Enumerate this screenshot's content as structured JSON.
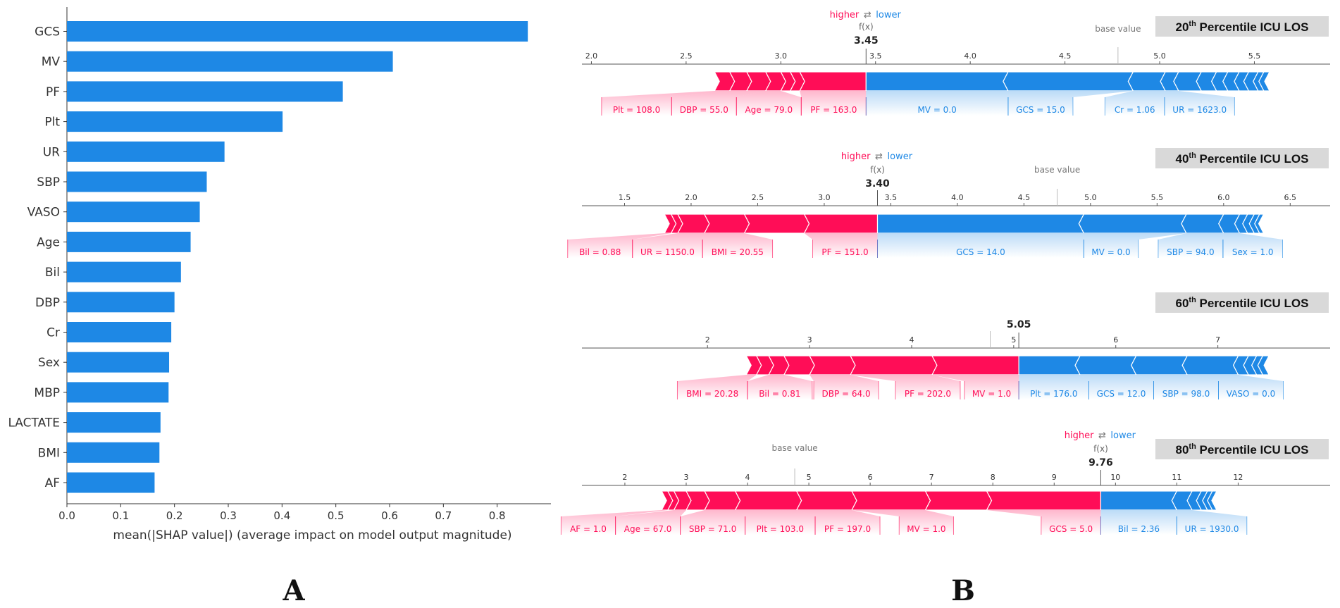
{
  "panel_labels": {
    "a": "A",
    "b": "B"
  },
  "chart_data": [
    {
      "type": "bar",
      "orientation": "horizontal",
      "title": "",
      "categories": [
        "GCS",
        "MV",
        "PF",
        "Plt",
        "UR",
        "SBP",
        "VASO",
        "Age",
        "Bil",
        "DBP",
        "Cr",
        "Sex",
        "MBP",
        "LACTATE",
        "BMI",
        "AF"
      ],
      "values": [
        0.857,
        0.606,
        0.513,
        0.401,
        0.293,
        0.26,
        0.247,
        0.23,
        0.212,
        0.2,
        0.194,
        0.19,
        0.189,
        0.174,
        0.172,
        0.163
      ],
      "xlabel": "mean(|SHAP value|) (average impact on model output magnitude)",
      "xlim": [
        0.0,
        0.9
      ],
      "xticks": [
        "0.0",
        "0.1",
        "0.2",
        "0.3",
        "0.4",
        "0.5",
        "0.6",
        "0.7",
        "0.8"
      ],
      "color": "#1e88e5"
    },
    {
      "type": "force",
      "title": "20th Percentile ICU LOS",
      "title_base": "20",
      "title_sup": "th",
      "title_rest": " Percentile ICU LOS",
      "fx": 3.45,
      "fx_label": "3.45",
      "fx_caption": "f(x)",
      "base_value": 4.78,
      "base_label": "base value",
      "legend_higher": "higher",
      "legend_arrow": "⇄",
      "legend_lower": "lower",
      "show_legend": true,
      "xlim": [
        1.95,
        5.9
      ],
      "ticks": [
        2.0,
        2.5,
        3.0,
        3.5,
        4.0,
        4.5,
        5.0,
        5.5
      ],
      "tick_labels": [
        "2.0",
        "2.5",
        "3.0",
        "3.5",
        "4.0",
        "4.5",
        "5.0",
        "5.5"
      ],
      "positive": [
        2.65,
        2.73,
        2.82,
        2.92,
        3.0,
        3.05,
        3.1,
        3.45
      ],
      "negative": [
        3.45,
        4.2,
        4.86,
        5.03,
        5.1,
        5.22,
        5.3,
        5.36,
        5.42,
        5.47,
        5.52,
        5.55,
        5.58
      ],
      "labels": [
        {
          "text": "Plt = 108.0",
          "side": "pos",
          "start": 2.65,
          "end": 2.73
        },
        {
          "text": "DBP = 55.0",
          "side": "pos",
          "start": 2.73,
          "end": 2.92
        },
        {
          "text": "Age = 79.0",
          "side": "pos",
          "start": 2.92,
          "end": 3.0
        },
        {
          "text": "PF = 163.0",
          "side": "pos",
          "start": 3.1,
          "end": 3.45
        },
        {
          "text": "MV = 0.0",
          "side": "neg",
          "start": 3.45,
          "end": 4.2
        },
        {
          "text": "GCS = 15.0",
          "side": "neg",
          "start": 4.2,
          "end": 4.86
        },
        {
          "text": "Cr = 1.06",
          "side": "neg",
          "start": 4.86,
          "end": 5.03
        },
        {
          "text": "UR = 1623.0",
          "side": "neg",
          "start": 5.03,
          "end": 5.1
        }
      ]
    },
    {
      "type": "force",
      "title": "40th Percentile ICU LOS",
      "title_base": "40",
      "title_sup": "th",
      "title_rest": " Percentile ICU LOS",
      "fx": 3.4,
      "fx_label": "3.40",
      "fx_caption": "f(x)",
      "base_value": 4.75,
      "base_label": "base value",
      "legend_higher": "higher",
      "legend_arrow": "⇄",
      "legend_lower": "lower",
      "show_legend": true,
      "xlim": [
        1.18,
        6.8
      ],
      "ticks": [
        1.5,
        2.0,
        2.5,
        3.0,
        3.5,
        4.0,
        4.5,
        5.0,
        5.5,
        6.0,
        6.5
      ],
      "tick_labels": [
        "1.5",
        "2.0",
        "2.5",
        "3.0",
        "3.5",
        "4.0",
        "4.5",
        "5.0",
        "5.5",
        "6.0",
        "6.5"
      ],
      "positive": [
        1.8,
        1.85,
        1.9,
        2.1,
        2.4,
        2.85,
        3.4
      ],
      "negative": [
        3.4,
        4.95,
        5.72,
        6.0,
        6.12,
        6.18,
        6.23,
        6.27,
        6.3
      ],
      "labels": [
        {
          "text": "Bil = 0.88",
          "side": "pos",
          "start": 1.8,
          "end": 1.85
        },
        {
          "text": "UR = 1150.0",
          "side": "pos",
          "start": 1.9,
          "end": 2.1
        },
        {
          "text": "BMI = 20.55",
          "side": "pos",
          "start": 2.1,
          "end": 2.4
        },
        {
          "text": "PF = 151.0",
          "side": "pos",
          "start": 2.85,
          "end": 3.4
        },
        {
          "text": "GCS = 14.0",
          "side": "neg",
          "start": 3.4,
          "end": 4.95
        },
        {
          "text": "MV = 0.0",
          "side": "neg",
          "start": 4.95,
          "end": 5.72
        },
        {
          "text": "SBP = 94.0",
          "side": "neg",
          "start": 5.72,
          "end": 6.0
        },
        {
          "text": "Sex = 1.0",
          "side": "neg",
          "start": 6.0,
          "end": 6.12
        }
      ]
    },
    {
      "type": "force",
      "title": "60th Percentile ICU LOS",
      "title_base": "60",
      "title_sup": "th",
      "title_rest": " Percentile ICU LOS",
      "fx": 5.05,
      "fx_label": "5.05",
      "base_value": 4.77,
      "show_legend": false,
      "xlim": [
        0.77,
        8.1
      ],
      "ticks": [
        2,
        3,
        4,
        5,
        6,
        7
      ],
      "tick_labels": [
        "2",
        "3",
        "4",
        "5",
        "6",
        "7"
      ],
      "positive": [
        2.38,
        2.48,
        2.6,
        2.75,
        3.0,
        3.4,
        4.2,
        5.05
      ],
      "negative": [
        5.05,
        5.65,
        6.2,
        6.7,
        7.2,
        7.3,
        7.38,
        7.44,
        7.5
      ],
      "labels": [
        {
          "text": "BMI = 20.28",
          "side": "pos",
          "start": 2.38,
          "end": 2.48
        },
        {
          "text": "Bil = 0.81",
          "side": "pos",
          "start": 2.6,
          "end": 2.75
        },
        {
          "text": "DBP = 64.0",
          "side": "pos",
          "start": 3.0,
          "end": 3.4
        },
        {
          "text": "PF = 202.0",
          "side": "pos",
          "start": 3.4,
          "end": 4.2
        },
        {
          "text": "MV = 1.0",
          "side": "pos",
          "start": 4.2,
          "end": 5.05
        },
        {
          "text": "Plt = 176.0",
          "side": "neg",
          "start": 5.05,
          "end": 5.65
        },
        {
          "text": "GCS = 12.0",
          "side": "neg",
          "start": 5.65,
          "end": 6.2
        },
        {
          "text": "SBP = 98.0",
          "side": "neg",
          "start": 6.2,
          "end": 6.7
        },
        {
          "text": "VASO = 0.0",
          "side": "neg",
          "start": 6.7,
          "end": 7.2
        }
      ]
    },
    {
      "type": "force",
      "title": "80th Percentile ICU LOS",
      "title_base": "80",
      "title_sup": "th",
      "title_rest": " Percentile ICU LOS",
      "fx": 9.76,
      "fx_label": "9.76",
      "fx_caption": "f(x)",
      "base_value": 4.77,
      "base_label": "base value",
      "legend_higher": "higher",
      "legend_arrow": "⇄",
      "legend_lower": "lower",
      "show_legend": true,
      "xlim": [
        1.3,
        13.5
      ],
      "ticks": [
        2,
        3,
        4,
        5,
        6,
        7,
        8,
        9,
        10,
        11,
        12
      ],
      "tick_labels": [
        "2",
        "3",
        "4",
        "5",
        "6",
        "7",
        "8",
        "9",
        "10",
        "11",
        "12"
      ],
      "positive": [
        2.6,
        2.7,
        2.8,
        3.0,
        3.3,
        3.8,
        4.8,
        5.7,
        6.9,
        7.9,
        9.76
      ],
      "negative": [
        9.76,
        11.0,
        11.25,
        11.4,
        11.5,
        11.58,
        11.65
      ],
      "labels": [
        {
          "text": "AF = 1.0",
          "side": "pos",
          "start": 2.6,
          "end": 2.7
        },
        {
          "text": "Age = 67.0",
          "side": "pos",
          "start": 2.8,
          "end": 3.0
        },
        {
          "text": "SBP = 71.0",
          "side": "pos",
          "start": 3.3,
          "end": 3.8
        },
        {
          "text": "Plt = 103.0",
          "side": "pos",
          "start": 3.8,
          "end": 4.8
        },
        {
          "text": "PF = 197.0",
          "side": "pos",
          "start": 4.8,
          "end": 5.7
        },
        {
          "text": "MV = 1.0",
          "side": "pos",
          "start": 5.7,
          "end": 6.9
        },
        {
          "text": "GCS = 5.0",
          "side": "pos",
          "start": 7.9,
          "end": 9.76
        },
        {
          "text": "Bil = 2.36",
          "side": "neg",
          "start": 9.76,
          "end": 11.0
        },
        {
          "text": "UR = 1930.0",
          "side": "neg",
          "start": 11.0,
          "end": 11.25
        }
      ]
    }
  ]
}
